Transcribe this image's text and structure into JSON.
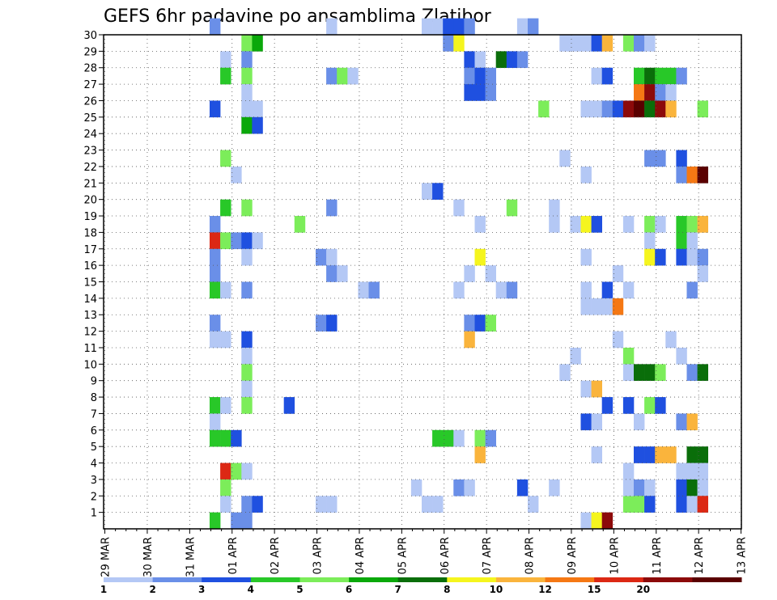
{
  "chart_data": {
    "type": "heatmap",
    "title": "GEFS 6hr padavine po ansamblima Zlatibor",
    "x_tick_labels": [
      "29 MAR",
      "30 MAR",
      "31 MAR",
      "01 APR",
      "02 APR",
      "03 APR",
      "04 APR",
      "05 APR",
      "06 APR",
      "07 APR",
      "08 APR",
      "09 APR",
      "10 APR",
      "11 APR",
      "12 APR",
      "13 APR"
    ],
    "y_tick_labels": [
      "1",
      "2",
      "3",
      "4",
      "5",
      "6",
      "7",
      "8",
      "9",
      "10",
      "11",
      "12",
      "13",
      "14",
      "15",
      "16",
      "17",
      "18",
      "19",
      "20",
      "21",
      "22",
      "23",
      "24",
      "25",
      "26",
      "27",
      "28",
      "29",
      "30"
    ],
    "x_range_steps": [
      0,
      60
    ],
    "y_range_members": [
      0,
      30
    ],
    "grid": "dotted",
    "colorbar": {
      "position": "bottom",
      "labels": [
        "1",
        "2",
        "3",
        "4",
        "5",
        "6",
        "7",
        "8",
        "10",
        "12",
        "15",
        "20"
      ],
      "colors": [
        "#b4c8f5",
        "#6a8fe8",
        "#1f50e0",
        "#28c828",
        "#7ced5a",
        "#0aa80a",
        "#0a6e0a",
        "#f5f51e",
        "#fab43c",
        "#f57814",
        "#dc2814",
        "#8c0a0a",
        "#5a0000"
      ]
    },
    "cells_note": "each cell: [time_step, member, color_index]",
    "cells": [
      [
        15,
        30,
        2
      ],
      [
        15,
        25,
        3
      ],
      [
        15,
        18,
        2
      ],
      [
        15,
        17,
        11
      ],
      [
        15,
        16,
        2
      ],
      [
        15,
        15,
        2
      ],
      [
        15,
        14,
        4
      ],
      [
        15,
        12,
        2
      ],
      [
        15,
        11,
        1
      ],
      [
        15,
        7,
        4
      ],
      [
        15,
        6,
        1
      ],
      [
        15,
        5,
        4
      ],
      [
        15,
        0,
        4
      ],
      [
        16,
        28,
        1
      ],
      [
        16,
        27,
        4
      ],
      [
        16,
        19,
        4
      ],
      [
        16,
        22,
        5
      ],
      [
        16,
        17,
        5
      ],
      [
        16,
        14,
        1
      ],
      [
        16,
        11,
        1
      ],
      [
        16,
        7,
        1
      ],
      [
        16,
        5,
        4
      ],
      [
        16,
        3,
        11
      ],
      [
        16,
        2,
        5
      ],
      [
        16,
        1,
        1
      ],
      [
        17,
        21,
        1
      ],
      [
        17,
        17,
        2
      ],
      [
        17,
        5,
        3
      ],
      [
        17,
        3,
        5
      ],
      [
        17,
        0,
        2
      ],
      [
        18,
        29,
        5
      ],
      [
        18,
        28,
        2
      ],
      [
        18,
        27,
        5
      ],
      [
        18,
        26,
        1
      ],
      [
        18,
        25,
        1
      ],
      [
        18,
        24,
        6
      ],
      [
        18,
        19,
        5
      ],
      [
        18,
        17,
        3
      ],
      [
        18,
        16,
        1
      ],
      [
        18,
        14,
        2
      ],
      [
        18,
        11,
        3
      ],
      [
        18,
        10,
        1
      ],
      [
        18,
        9,
        5
      ],
      [
        18,
        8,
        1
      ],
      [
        18,
        7,
        5
      ],
      [
        18,
        3,
        1
      ],
      [
        18,
        1,
        2
      ],
      [
        18,
        0,
        2
      ],
      [
        19,
        29,
        6
      ],
      [
        19,
        25,
        1
      ],
      [
        19,
        24,
        3
      ],
      [
        19,
        17,
        1
      ],
      [
        19,
        1,
        3
      ],
      [
        22,
        7,
        3
      ],
      [
        23,
        18,
        5
      ],
      [
        25,
        16,
        2
      ],
      [
        25,
        12,
        2
      ],
      [
        25,
        1,
        1
      ],
      [
        26,
        30,
        1
      ],
      [
        26,
        27,
        2
      ],
      [
        26,
        19,
        2
      ],
      [
        26,
        16,
        1
      ],
      [
        26,
        15,
        2
      ],
      [
        26,
        12,
        3
      ],
      [
        26,
        1,
        1
      ],
      [
        27,
        27,
        5
      ],
      [
        27,
        15,
        1
      ],
      [
        28,
        27,
        1
      ],
      [
        29,
        14,
        1
      ],
      [
        30,
        14,
        2
      ],
      [
        34,
        2,
        1
      ],
      [
        35,
        30,
        1
      ],
      [
        35,
        20,
        1
      ],
      [
        35,
        1,
        1
      ],
      [
        36,
        30,
        1
      ],
      [
        36,
        20,
        3
      ],
      [
        36,
        5,
        4
      ],
      [
        36,
        1,
        1
      ],
      [
        37,
        30,
        3
      ],
      [
        37,
        29,
        2
      ],
      [
        37,
        5,
        4
      ],
      [
        38,
        30,
        3
      ],
      [
        38,
        29,
        8
      ],
      [
        38,
        19,
        1
      ],
      [
        38,
        14,
        1
      ],
      [
        38,
        5,
        1
      ],
      [
        38,
        2,
        2
      ],
      [
        39,
        30,
        2
      ],
      [
        39,
        28,
        3
      ],
      [
        39,
        27,
        2
      ],
      [
        39,
        26,
        3
      ],
      [
        39,
        15,
        1
      ],
      [
        39,
        12,
        2
      ],
      [
        39,
        11,
        9
      ],
      [
        39,
        2,
        1
      ],
      [
        40,
        28,
        1
      ],
      [
        40,
        27,
        3
      ],
      [
        40,
        26,
        3
      ],
      [
        40,
        18,
        1
      ],
      [
        40,
        16,
        8
      ],
      [
        40,
        12,
        3
      ],
      [
        40,
        5,
        5
      ],
      [
        40,
        4,
        9
      ],
      [
        41,
        27,
        2
      ],
      [
        41,
        26,
        2
      ],
      [
        41,
        15,
        1
      ],
      [
        41,
        12,
        5
      ],
      [
        41,
        5,
        2
      ],
      [
        42,
        28,
        7
      ],
      [
        42,
        14,
        1
      ],
      [
        43,
        28,
        3
      ],
      [
        43,
        19,
        5
      ],
      [
        43,
        14,
        2
      ],
      [
        44,
        30,
        1
      ],
      [
        44,
        28,
        2
      ],
      [
        44,
        2,
        3
      ],
      [
        45,
        30,
        2
      ],
      [
        45,
        1,
        1
      ],
      [
        46,
        25,
        5
      ],
      [
        47,
        19,
        1
      ],
      [
        47,
        18,
        1
      ],
      [
        47,
        2,
        1
      ],
      [
        48,
        29,
        1
      ],
      [
        48,
        22,
        1
      ],
      [
        48,
        9,
        1
      ],
      [
        49,
        29,
        1
      ],
      [
        49,
        18,
        1
      ],
      [
        49,
        10,
        1
      ],
      [
        50,
        29,
        1
      ],
      [
        50,
        25,
        1
      ],
      [
        50,
        21,
        1
      ],
      [
        50,
        18,
        8
      ],
      [
        50,
        16,
        1
      ],
      [
        50,
        14,
        1
      ],
      [
        50,
        13,
        1
      ],
      [
        50,
        8,
        1
      ],
      [
        50,
        6,
        3
      ],
      [
        50,
        0,
        1
      ],
      [
        51,
        29,
        3
      ],
      [
        51,
        27,
        1
      ],
      [
        51,
        25,
        1
      ],
      [
        51,
        18,
        3
      ],
      [
        51,
        13,
        1
      ],
      [
        51,
        8,
        9
      ],
      [
        51,
        6,
        1
      ],
      [
        51,
        0,
        8
      ],
      [
        51,
        4,
        1
      ],
      [
        52,
        29,
        9
      ],
      [
        52,
        27,
        3
      ],
      [
        52,
        25,
        2
      ],
      [
        52,
        14,
        3
      ],
      [
        52,
        13,
        1
      ],
      [
        52,
        7,
        3
      ],
      [
        52,
        0,
        12
      ],
      [
        53,
        25,
        3
      ],
      [
        53,
        15,
        1
      ],
      [
        53,
        13,
        10
      ],
      [
        53,
        11,
        1
      ],
      [
        54,
        29,
        5
      ],
      [
        54,
        25,
        12
      ],
      [
        54,
        18,
        1
      ],
      [
        54,
        14,
        1
      ],
      [
        54,
        10,
        5
      ],
      [
        54,
        9,
        1
      ],
      [
        54,
        7,
        3
      ],
      [
        54,
        3,
        1
      ],
      [
        54,
        1,
        5
      ],
      [
        54,
        2,
        1
      ],
      [
        55,
        29,
        2
      ],
      [
        55,
        27,
        4
      ],
      [
        55,
        26,
        10
      ],
      [
        55,
        25,
        13
      ],
      [
        55,
        9,
        7
      ],
      [
        55,
        6,
        1
      ],
      [
        55,
        4,
        3
      ],
      [
        55,
        2,
        2
      ],
      [
        55,
        1,
        5
      ],
      [
        56,
        29,
        1
      ],
      [
        56,
        27,
        7
      ],
      [
        56,
        26,
        12
      ],
      [
        56,
        25,
        7
      ],
      [
        56,
        22,
        2
      ],
      [
        56,
        18,
        5
      ],
      [
        56,
        17,
        1
      ],
      [
        56,
        16,
        8
      ],
      [
        56,
        9,
        7
      ],
      [
        56,
        7,
        5
      ],
      [
        56,
        4,
        3
      ],
      [
        56,
        2,
        1
      ],
      [
        56,
        1,
        3
      ],
      [
        57,
        27,
        4
      ],
      [
        57,
        26,
        2
      ],
      [
        57,
        25,
        12
      ],
      [
        57,
        22,
        2
      ],
      [
        57,
        18,
        1
      ],
      [
        57,
        16,
        3
      ],
      [
        57,
        9,
        5
      ],
      [
        57,
        7,
        3
      ],
      [
        57,
        4,
        9
      ],
      [
        58,
        27,
        4
      ],
      [
        58,
        26,
        1
      ],
      [
        58,
        25,
        9
      ],
      [
        58,
        11,
        1
      ],
      [
        58,
        4,
        9
      ],
      [
        59,
        27,
        2
      ],
      [
        59,
        22,
        3
      ],
      [
        59,
        21,
        2
      ],
      [
        59,
        18,
        4
      ],
      [
        59,
        17,
        4
      ],
      [
        59,
        16,
        3
      ],
      [
        59,
        10,
        1
      ],
      [
        59,
        6,
        2
      ],
      [
        59,
        3,
        1
      ],
      [
        59,
        2,
        3
      ],
      [
        59,
        1,
        3
      ],
      [
        60,
        21,
        10
      ],
      [
        60,
        18,
        5
      ],
      [
        60,
        17,
        1
      ],
      [
        60,
        16,
        1
      ],
      [
        60,
        14,
        2
      ],
      [
        60,
        9,
        2
      ],
      [
        60,
        6,
        9
      ],
      [
        60,
        4,
        7
      ],
      [
        60,
        3,
        1
      ],
      [
        60,
        2,
        7
      ],
      [
        60,
        1,
        1
      ],
      [
        61,
        25,
        5
      ],
      [
        61,
        21,
        13
      ],
      [
        61,
        18,
        9
      ],
      [
        61,
        16,
        2
      ],
      [
        61,
        15,
        1
      ],
      [
        61,
        9,
        7
      ],
      [
        61,
        4,
        7
      ],
      [
        61,
        3,
        1
      ],
      [
        61,
        2,
        1
      ],
      [
        61,
        1,
        11
      ]
    ]
  }
}
